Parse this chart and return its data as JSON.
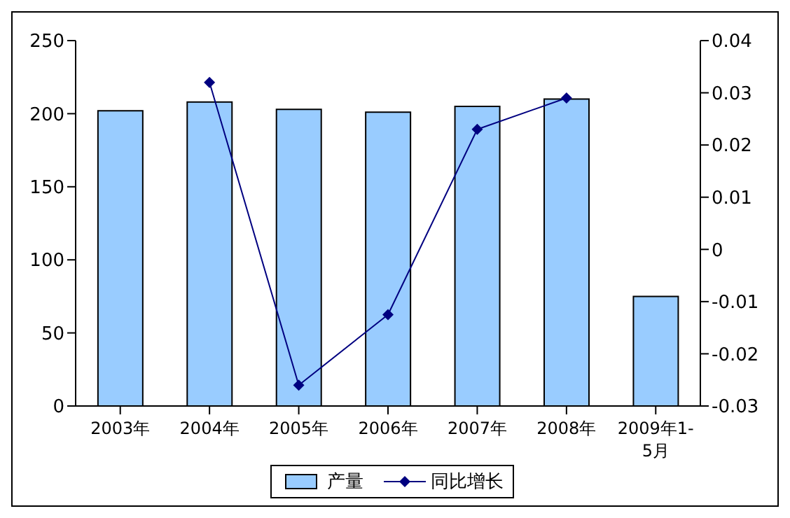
{
  "chart_data": {
    "type": "bar",
    "categories": [
      "2003年",
      "2004年",
      "2005年",
      "2006年",
      "2007年",
      "2008年",
      "2009年1-5月"
    ],
    "series": [
      {
        "name": "产量",
        "color": "#99ccff",
        "values": [
          202,
          208,
          203,
          201,
          205,
          210,
          75
        ]
      },
      {
        "name": "同比增长",
        "type": "line",
        "axis": "y2",
        "color": "#000080",
        "values": [
          null,
          0.032,
          -0.026,
          -0.0125,
          0.023,
          0.029,
          null
        ]
      }
    ],
    "ylim": [
      0,
      250
    ],
    "yticks": [
      0,
      50,
      100,
      150,
      200,
      250
    ],
    "y2lim": [
      -0.03,
      0.04
    ],
    "y2ticks": [
      -0.03,
      -0.02,
      -0.01,
      0,
      0.01,
      0.02,
      0.03,
      0.04
    ],
    "grid": false,
    "legend": "bottom",
    "marker": "diamond"
  }
}
